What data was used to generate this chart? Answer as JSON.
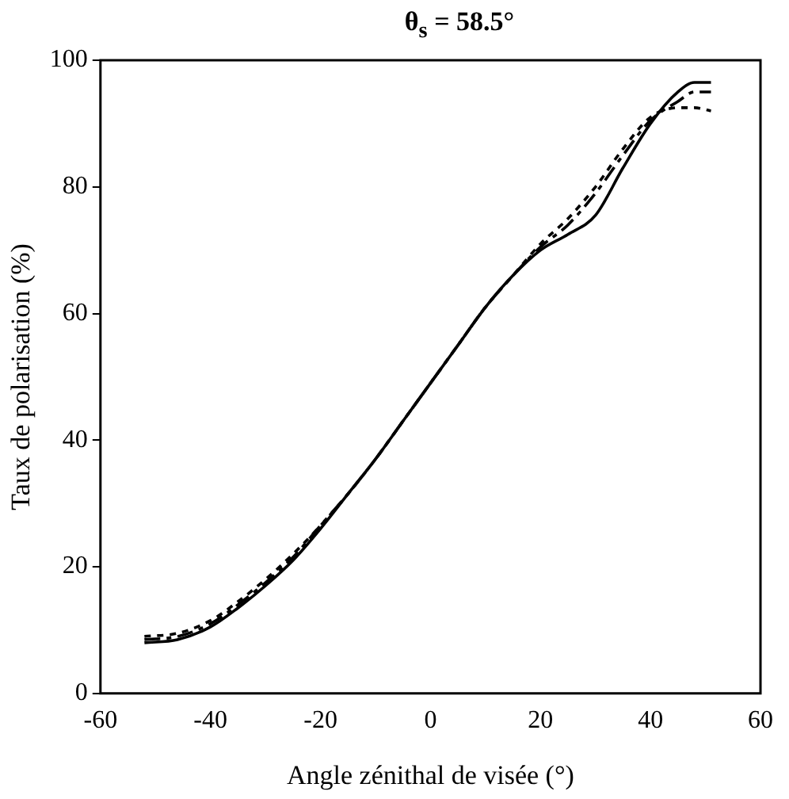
{
  "chart_data": {
    "type": "line",
    "title": "θ$_{s}$ = 58.5°",
    "xlabel": "Angle zénithal de visée (°)",
    "ylabel": "Taux de polarisation (%)",
    "x": [
      -52,
      -46,
      -40,
      -35,
      -30,
      -25,
      -20,
      -15,
      -10,
      -5,
      0,
      5,
      10,
      15,
      20,
      25,
      30,
      35,
      40,
      45,
      48,
      51
    ],
    "series": [
      {
        "color": "#000000",
        "line_style": "solid",
        "values": [
          8,
          8.5,
          10.5,
          13.5,
          17,
          21,
          26,
          31.5,
          37,
          43,
          49,
          55,
          61,
          66,
          70,
          72.5,
          75.5,
          83,
          90,
          95,
          96.5,
          96.5
        ]
      },
      {
        "color": "#000000",
        "line_style": "dashed",
        "values": [
          8.5,
          9,
          11,
          14,
          17.5,
          21.5,
          26.5,
          31.5,
          37,
          43,
          49,
          55,
          61,
          66,
          70.5,
          74,
          79,
          85,
          90.5,
          93.5,
          95,
          95
        ]
      },
      {
        "color": "#000000",
        "line_style": "dotted",
        "values": [
          9,
          9.5,
          11.5,
          14.5,
          18,
          22,
          26.5,
          31.5,
          37,
          43,
          49,
          55,
          61,
          66,
          71,
          75,
          80,
          86,
          91,
          92.5,
          92.5,
          92
        ]
      }
    ],
    "xlim": [
      -60,
      60
    ],
    "xticks": [
      -60,
      -40,
      -20,
      0,
      20,
      40,
      60
    ],
    "ylim": [
      0,
      100
    ],
    "yticks": [
      0,
      20,
      40,
      60,
      80,
      100
    ],
    "grid": false,
    "legend": false,
    "marker": "none"
  }
}
